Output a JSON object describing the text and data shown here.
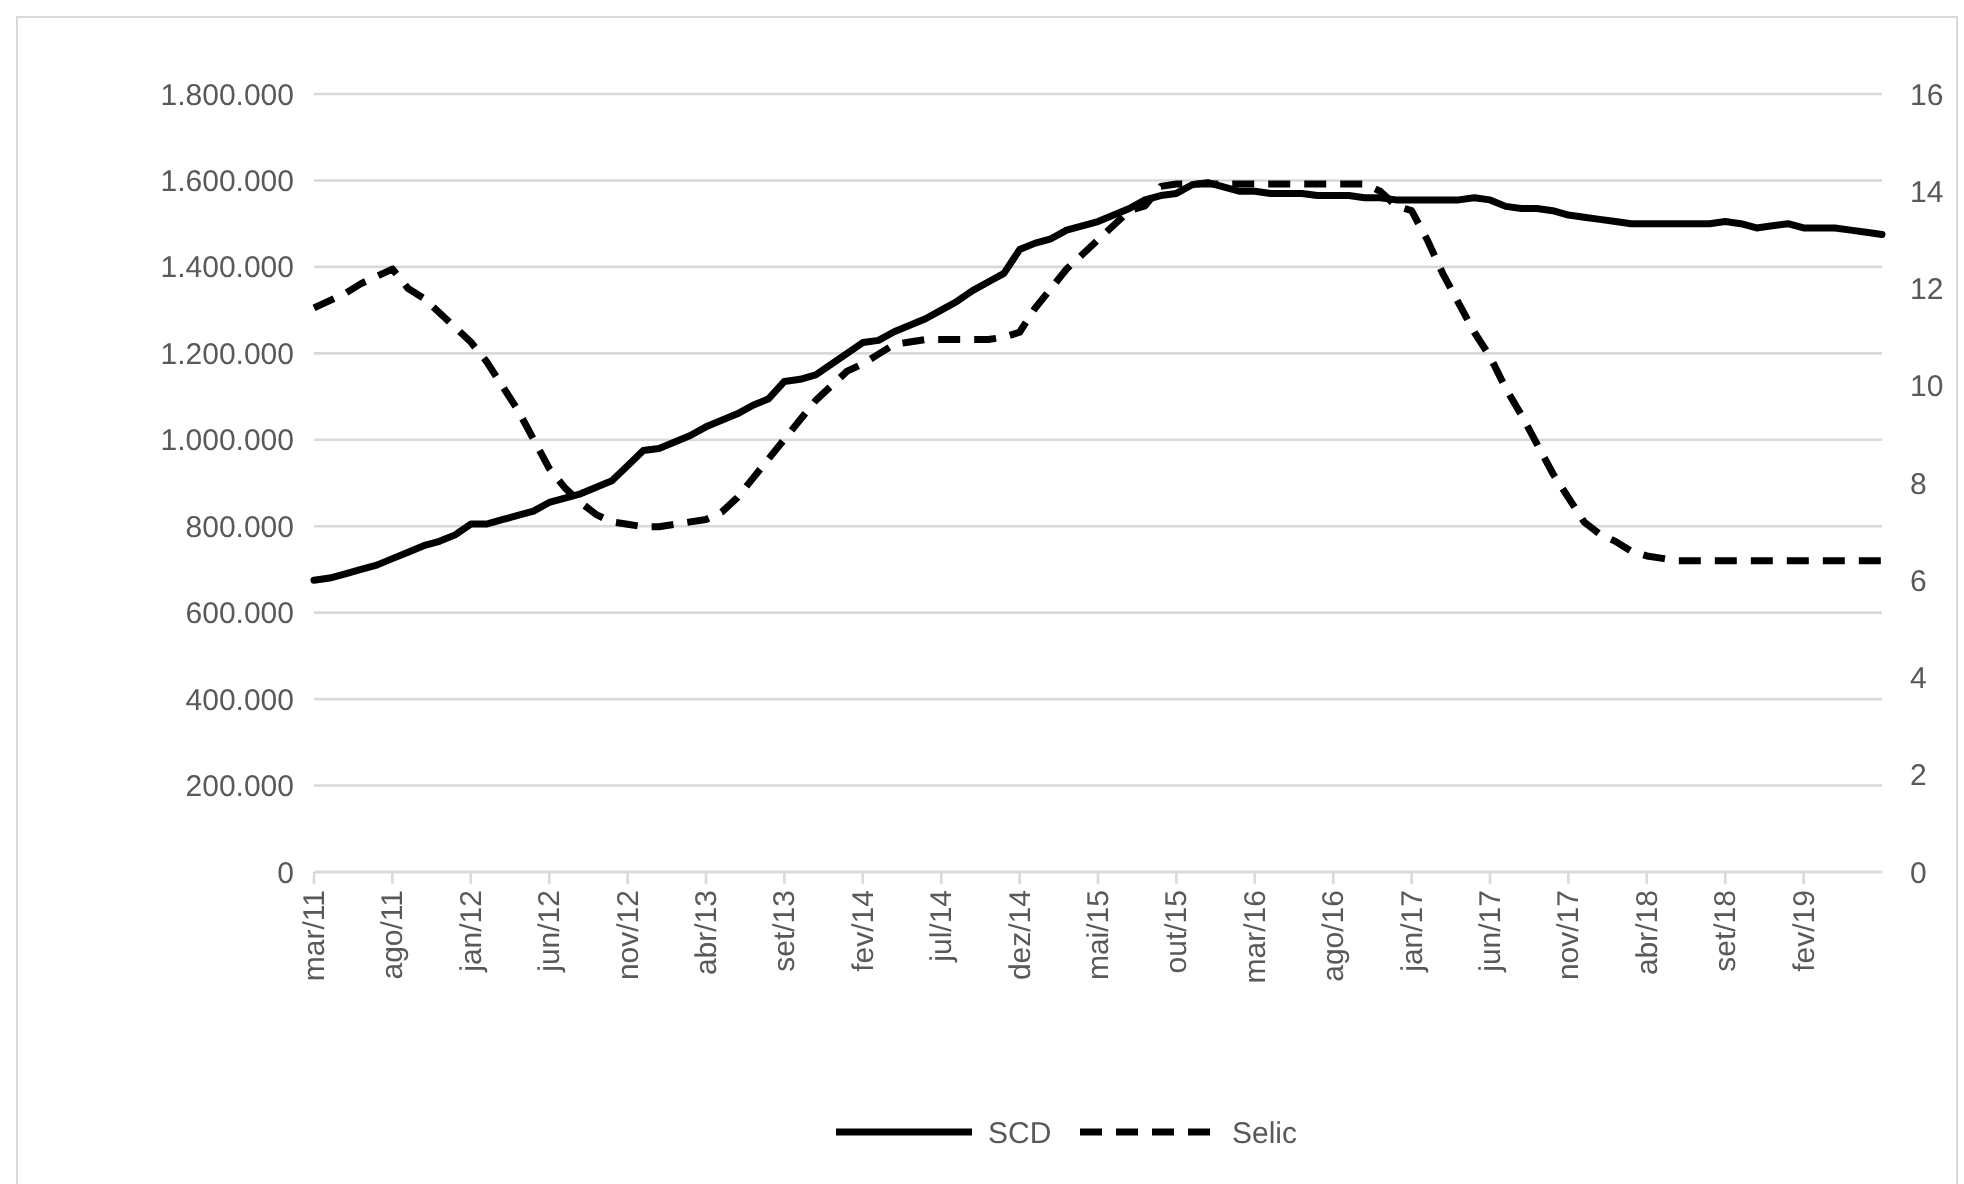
{
  "chart_data": {
    "type": "line",
    "categories": [
      "mar/11",
      null,
      null,
      null,
      null,
      "ago/11",
      null,
      null,
      null,
      null,
      "jan/12",
      null,
      null,
      null,
      null,
      "jun/12",
      null,
      null,
      null,
      null,
      "nov/12",
      null,
      null,
      null,
      null,
      "abr/13",
      null,
      null,
      null,
      null,
      "set/13",
      null,
      null,
      null,
      null,
      "fev/14",
      null,
      null,
      null,
      null,
      "jul/14",
      null,
      null,
      null,
      null,
      "dez/14",
      null,
      null,
      null,
      null,
      "mai/15",
      null,
      null,
      null,
      null,
      "out/15",
      null,
      null,
      null,
      null,
      "mar/16",
      null,
      null,
      null,
      null,
      "ago/16",
      null,
      null,
      null,
      null,
      "jan/17",
      null,
      null,
      null,
      null,
      "jun/17",
      null,
      null,
      null,
      null,
      "nov/17",
      null,
      null,
      null,
      null,
      "abr/18",
      null,
      null,
      null,
      null,
      "set/18",
      null,
      null,
      null,
      null,
      "fev/19",
      null,
      null,
      null,
      null,
      null
    ],
    "series": [
      {
        "name": "SCD",
        "color": "#000000",
        "line_style": "solid",
        "values": [
          675000,
          680000,
          690000,
          700000,
          710000,
          725000,
          740000,
          755000,
          765000,
          780000,
          805000,
          805000,
          815000,
          825000,
          835000,
          855000,
          865000,
          875000,
          890000,
          905000,
          940000,
          975000,
          980000,
          995000,
          1010000,
          1030000,
          1045000,
          1060000,
          1080000,
          1095000,
          1135000,
          1140000,
          1150000,
          1175000,
          1200000,
          1225000,
          1230000,
          1250000,
          1265000,
          1280000,
          1300000,
          1320000,
          1345000,
          1365000,
          1385000,
          1440000,
          1455000,
          1465000,
          1485000,
          1495000,
          1505000,
          1520000,
          1535000,
          1555000,
          1565000,
          1570000,
          1590000,
          1595000,
          1585000,
          1575000,
          1575000,
          1570000,
          1570000,
          1570000,
          1565000,
          1565000,
          1565000,
          1560000,
          1560000,
          1555000,
          1555000,
          1555000,
          1555000,
          1555000,
          1560000,
          1555000,
          1540000,
          1535000,
          1535000,
          1530000,
          1520000,
          1515000,
          1510000,
          1505000,
          1500000,
          1500000,
          1500000,
          1500000,
          1500000,
          1500000,
          1505000,
          1500000,
          1490000,
          1495000,
          1500000,
          1490000,
          1490000,
          1490000,
          1485000,
          1480000,
          1475000
        ]
      },
      {
        "name": "Selic",
        "color": "#000000",
        "line_style": "dashed",
        "axis": "y2",
        "values": [
          11.6,
          11.75,
          11.9,
          12.1,
          12.25,
          12.4,
          12.0,
          11.8,
          11.5,
          11.2,
          10.9,
          10.5,
          10.0,
          9.5,
          8.9,
          8.3,
          7.9,
          7.6,
          7.35,
          7.2,
          7.15,
          7.1,
          7.1,
          7.15,
          7.2,
          7.25,
          7.4,
          7.7,
          8.1,
          8.5,
          8.9,
          9.3,
          9.7,
          10.0,
          10.3,
          10.45,
          10.65,
          10.85,
          10.9,
          10.95,
          10.95,
          10.95,
          10.95,
          10.95,
          11.0,
          11.1,
          11.6,
          12.0,
          12.4,
          12.7,
          13.0,
          13.3,
          13.6,
          13.7,
          14.1,
          14.15,
          14.15,
          14.15,
          14.15,
          14.15,
          14.15,
          14.15,
          14.15,
          14.15,
          14.15,
          14.15,
          14.15,
          14.15,
          14.0,
          13.7,
          13.6,
          13.0,
          12.3,
          11.7,
          11.1,
          10.6,
          9.95,
          9.4,
          8.8,
          8.2,
          7.7,
          7.2,
          6.95,
          6.8,
          6.6,
          6.5,
          6.45,
          6.4,
          6.4,
          6.4,
          6.4,
          6.4,
          6.4,
          6.4,
          6.4,
          6.4,
          6.4,
          6.4,
          6.4,
          6.4,
          6.4
        ]
      }
    ],
    "ylim": [
      0,
      1800000
    ],
    "yticks": [
      0,
      {
        "value": 200000,
        "label": "200.000"
      },
      {
        "value": 400000,
        "label": "400.000"
      },
      {
        "value": 600000,
        "label": "600.000"
      },
      {
        "value": 800000,
        "label": "800.000"
      },
      {
        "value": 1000000,
        "label": "1.000.000"
      },
      {
        "value": 1200000,
        "label": "1.200.000"
      },
      {
        "value": 1400000,
        "label": "1.400.000"
      },
      {
        "value": 1600000,
        "label": "1.600.000"
      },
      {
        "value": 1800000,
        "label": "1.800.000"
      }
    ],
    "y2lim": [
      0,
      16
    ],
    "y2ticks": [
      0,
      2,
      4,
      6,
      8,
      10,
      12,
      14,
      16
    ],
    "grid": "y",
    "legend": "bottom"
  }
}
